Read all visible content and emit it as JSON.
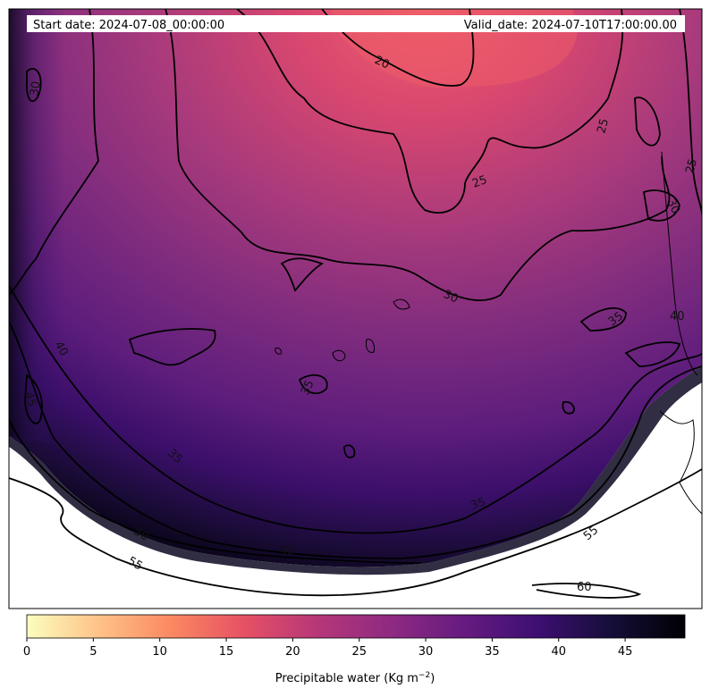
{
  "header": {
    "start_date": "Start date: 2024-07-08_00:00:00",
    "valid_date": "Valid_date: 2024-07-10T17:00:00.00"
  },
  "colorbar": {
    "label": "Precipitable water (Kg m",
    "label_sup": "−2",
    "label_end": ")",
    "ticks": [
      "0",
      "5",
      "10",
      "15",
      "20",
      "25",
      "30",
      "35",
      "40",
      "45"
    ],
    "range": [
      0,
      49.5
    ],
    "colormap": "magma_r",
    "colors": [
      "#fcfdbf",
      "#fec287",
      "#fb8861",
      "#e65164",
      "#b73779",
      "#8c2981",
      "#641a80",
      "#3b0f70",
      "#150e37",
      "#000004"
    ]
  },
  "contours": {
    "color": "#000000",
    "labels": [
      "20",
      "25",
      "25",
      "25",
      "30",
      "30",
      "30",
      "35",
      "35",
      "35",
      "35",
      "35",
      "40",
      "40",
      "45",
      "45",
      "50",
      "55",
      "55",
      "60"
    ]
  },
  "map": {
    "field": "precipitable water",
    "no_data_color": "#ffffff",
    "coastline_color": "#000000"
  }
}
